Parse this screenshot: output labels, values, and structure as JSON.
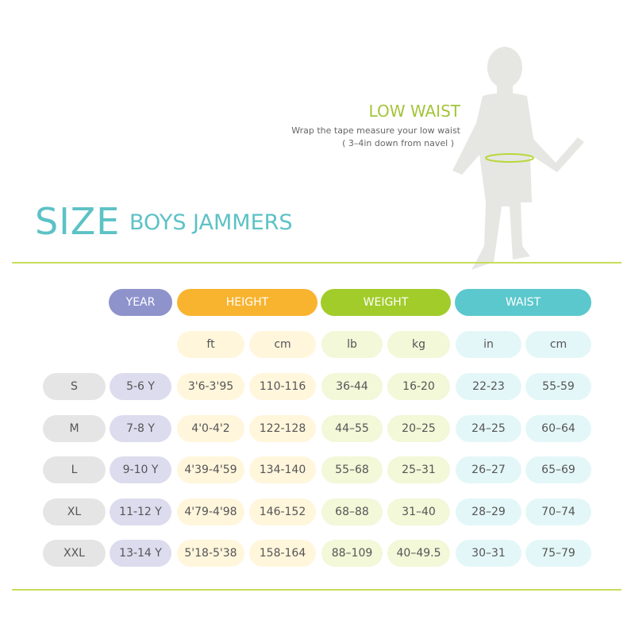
{
  "title": {
    "main": "SIZE",
    "sub": "BOYS JAMMERS"
  },
  "low_waist": {
    "title": "LOW WAIST",
    "line1": "Wrap the tape measure your low waist",
    "line2": "( 3–4in down from navel )"
  },
  "headers": {
    "year": "YEAR",
    "height": "HEIGHT",
    "weight": "WEIGHT",
    "waist": "WAIST"
  },
  "units": [
    "ft",
    "cm",
    "lb",
    "kg",
    "in",
    "cm"
  ],
  "rows": [
    {
      "size": "S",
      "year": "5-6 Y",
      "values": [
        "3'6-3'95",
        "110-116",
        "36-44",
        "16-20",
        "22-23",
        "55-59"
      ]
    },
    {
      "size": "M",
      "year": "7-8 Y",
      "values": [
        "4'0-4'2",
        "122-128",
        "44–55",
        "20–25",
        "24–25",
        "60–64"
      ]
    },
    {
      "size": "L",
      "year": "9-10 Y",
      "values": [
        "4'39-4'59",
        "134-140",
        "55–68",
        "25–31",
        "26–27",
        "65–69"
      ]
    },
    {
      "size": "XL",
      "year": "11-12 Y",
      "values": [
        "4'79-4'98",
        "146-152",
        "68–88",
        "31–40",
        "28–29",
        "70–74"
      ]
    },
    {
      "size": "XXL",
      "year": "13-14 Y",
      "values": [
        "5'18-5'38",
        "158-164",
        "88–109",
        "40–49.5",
        "30–31",
        "75–79"
      ]
    }
  ],
  "colors": {
    "year": "#8e93cc",
    "height": "#f8b32f",
    "weight": "#a2cc2a",
    "waist": "#5bc8cd",
    "accent_line": "#c8dc5a"
  }
}
